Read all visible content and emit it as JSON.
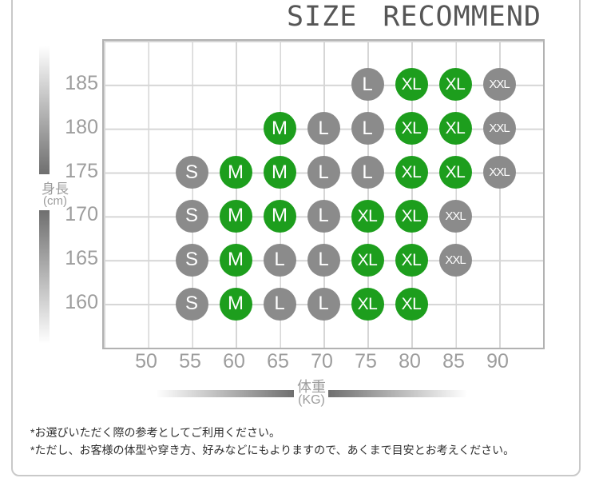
{
  "title": "SIZE RECOMMEND",
  "y_axis": {
    "label": "身長",
    "unit": "(cm)"
  },
  "x_axis": {
    "label": "体重",
    "unit": "(KG)"
  },
  "footnotes": {
    "line1": "*お選びいただく際の参考としてご利用ください。",
    "line2": "*ただし、お客様の体型や穿き方、好みなどにもよりますので、あくまで目安とお考えください。"
  },
  "colors": {
    "green": "#1d9e1d",
    "gray": "#8b8b8b"
  },
  "chart_data": {
    "type": "scatter",
    "title": "SIZE RECOMMEND",
    "xlabel": "体重 (KG)",
    "ylabel": "身長 (cm)",
    "x_ticks": [
      50,
      55,
      60,
      65,
      70,
      75,
      80,
      85,
      90
    ],
    "y_ticks": [
      185,
      180,
      175,
      170,
      165,
      160
    ],
    "xlim": [
      45,
      95
    ],
    "ylim": [
      157.5,
      190
    ],
    "grid": true,
    "legend": "none",
    "points": [
      {
        "height": 185,
        "weight": 75,
        "size": "L",
        "color": "gray"
      },
      {
        "height": 185,
        "weight": 80,
        "size": "XL",
        "color": "green"
      },
      {
        "height": 185,
        "weight": 85,
        "size": "XL",
        "color": "green"
      },
      {
        "height": 185,
        "weight": 90,
        "size": "XXL",
        "color": "gray"
      },
      {
        "height": 180,
        "weight": 65,
        "size": "M",
        "color": "green"
      },
      {
        "height": 180,
        "weight": 70,
        "size": "L",
        "color": "gray"
      },
      {
        "height": 180,
        "weight": 75,
        "size": "L",
        "color": "gray"
      },
      {
        "height": 180,
        "weight": 80,
        "size": "XL",
        "color": "green"
      },
      {
        "height": 180,
        "weight": 85,
        "size": "XL",
        "color": "green"
      },
      {
        "height": 180,
        "weight": 90,
        "size": "XXL",
        "color": "gray"
      },
      {
        "height": 175,
        "weight": 55,
        "size": "S",
        "color": "gray"
      },
      {
        "height": 175,
        "weight": 60,
        "size": "M",
        "color": "green"
      },
      {
        "height": 175,
        "weight": 65,
        "size": "M",
        "color": "green"
      },
      {
        "height": 175,
        "weight": 70,
        "size": "L",
        "color": "gray"
      },
      {
        "height": 175,
        "weight": 75,
        "size": "L",
        "color": "gray"
      },
      {
        "height": 175,
        "weight": 80,
        "size": "XL",
        "color": "green"
      },
      {
        "height": 175,
        "weight": 85,
        "size": "XL",
        "color": "green"
      },
      {
        "height": 175,
        "weight": 90,
        "size": "XXL",
        "color": "gray"
      },
      {
        "height": 170,
        "weight": 55,
        "size": "S",
        "color": "gray"
      },
      {
        "height": 170,
        "weight": 60,
        "size": "M",
        "color": "green"
      },
      {
        "height": 170,
        "weight": 65,
        "size": "M",
        "color": "green"
      },
      {
        "height": 170,
        "weight": 70,
        "size": "L",
        "color": "gray"
      },
      {
        "height": 170,
        "weight": 75,
        "size": "XL",
        "color": "green"
      },
      {
        "height": 170,
        "weight": 80,
        "size": "XL",
        "color": "green"
      },
      {
        "height": 170,
        "weight": 85,
        "size": "XXL",
        "color": "gray"
      },
      {
        "height": 165,
        "weight": 55,
        "size": "S",
        "color": "gray"
      },
      {
        "height": 165,
        "weight": 60,
        "size": "M",
        "color": "green"
      },
      {
        "height": 165,
        "weight": 65,
        "size": "L",
        "color": "gray"
      },
      {
        "height": 165,
        "weight": 70,
        "size": "L",
        "color": "gray"
      },
      {
        "height": 165,
        "weight": 75,
        "size": "XL",
        "color": "green"
      },
      {
        "height": 165,
        "weight": 80,
        "size": "XL",
        "color": "green"
      },
      {
        "height": 165,
        "weight": 85,
        "size": "XXL",
        "color": "gray"
      },
      {
        "height": 160,
        "weight": 55,
        "size": "S",
        "color": "gray"
      },
      {
        "height": 160,
        "weight": 60,
        "size": "M",
        "color": "green"
      },
      {
        "height": 160,
        "weight": 65,
        "size": "L",
        "color": "gray"
      },
      {
        "height": 160,
        "weight": 70,
        "size": "L",
        "color": "gray"
      },
      {
        "height": 160,
        "weight": 75,
        "size": "XL",
        "color": "green"
      },
      {
        "height": 160,
        "weight": 80,
        "size": "XL",
        "color": "green"
      }
    ]
  }
}
